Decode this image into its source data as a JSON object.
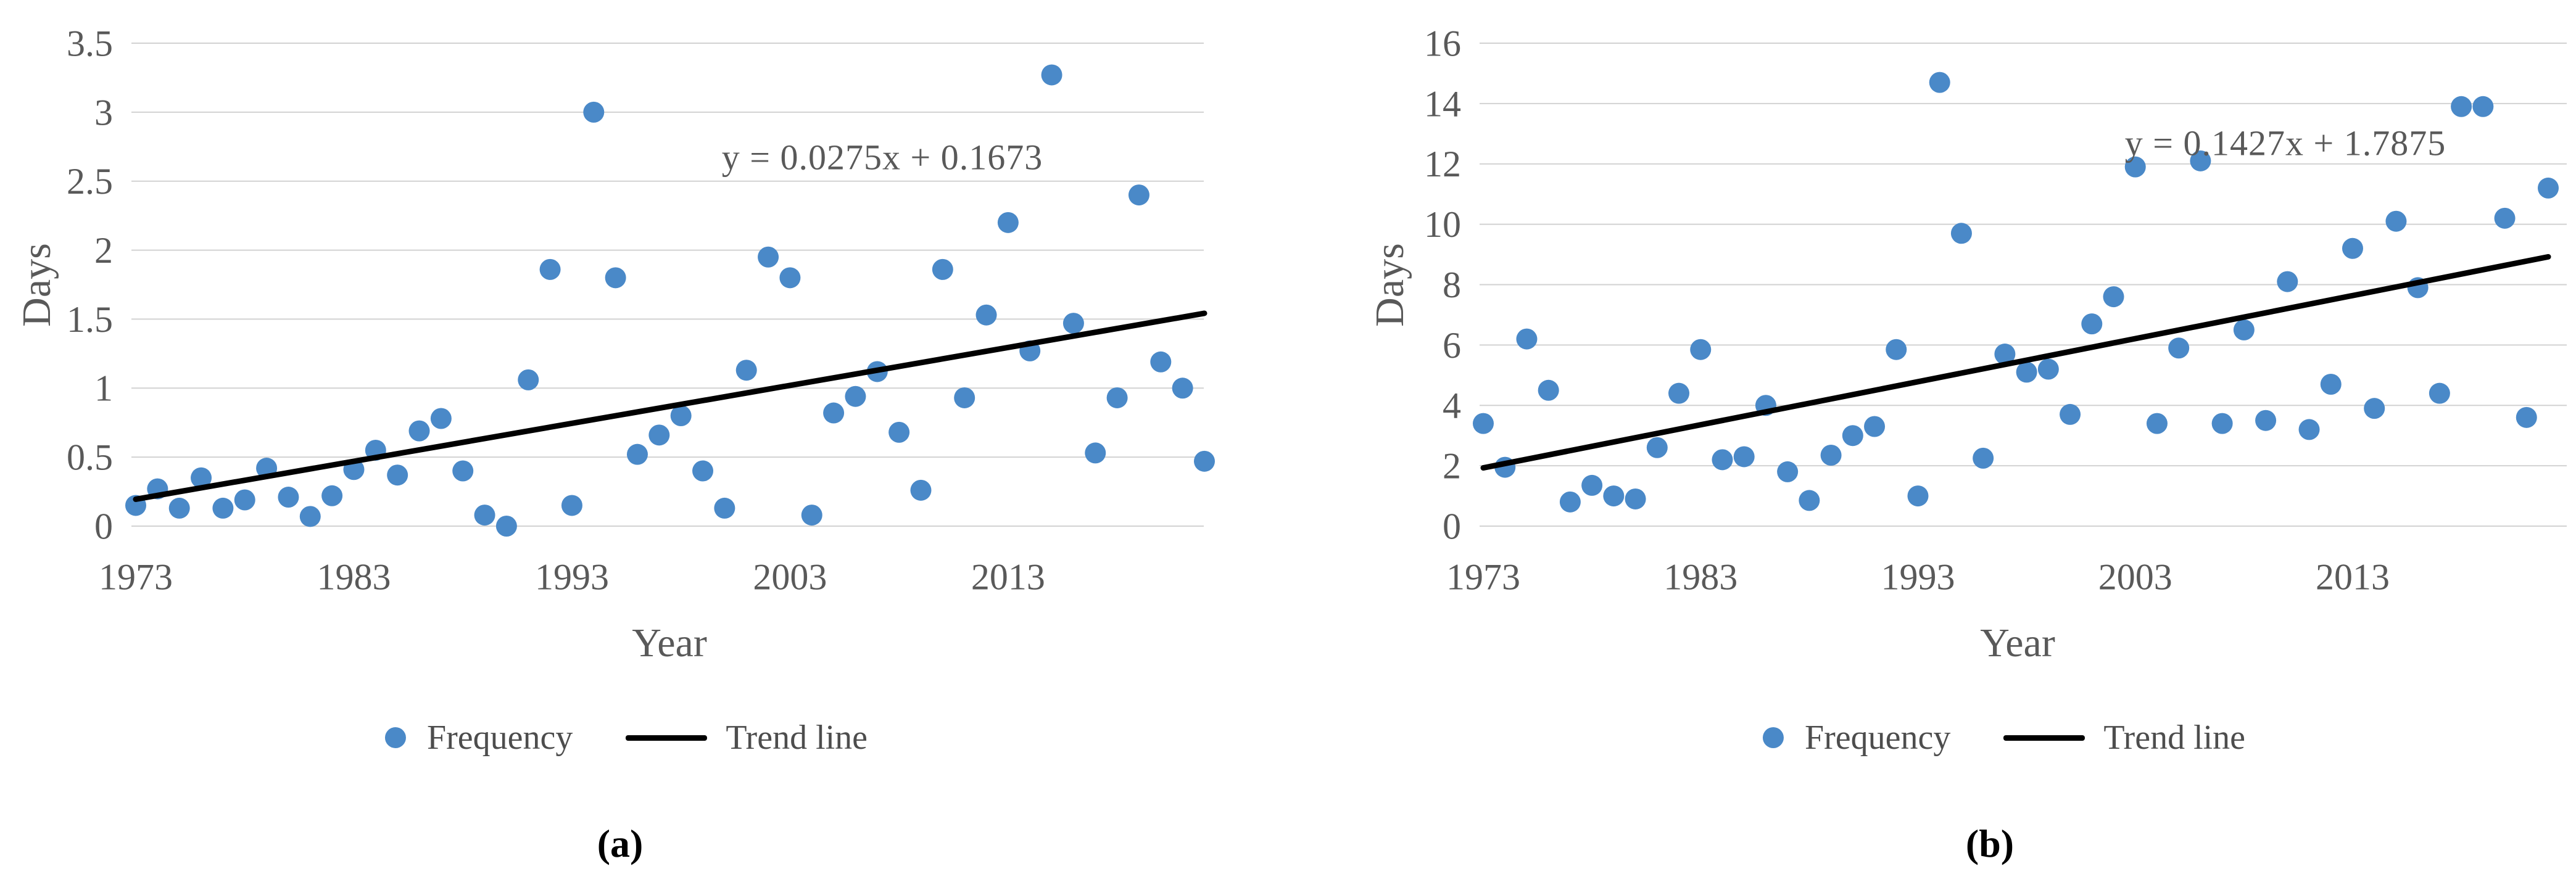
{
  "style": {
    "marker_color": "#4A89C8",
    "trend_color": "#000000",
    "gridline_color": "#D2D2D2",
    "tick_text_color": "#595959",
    "background": "#FFFFFF"
  },
  "chart_data": [
    {
      "type": "scatter",
      "title": "",
      "caption": "(a)",
      "xlabel": "Year",
      "ylabel": "Days",
      "annotation": "y = 0.0275x + 0.1673",
      "legend_position": "bottom",
      "grid": true,
      "xlim": [
        1973,
        2022
      ],
      "ylim": [
        0,
        3.5
      ],
      "x_ticks": [
        1973,
        1983,
        1993,
        2003,
        2013
      ],
      "y_ticks": [
        0,
        0.5,
        1,
        1.5,
        2,
        2.5,
        3,
        3.5
      ],
      "legend": [
        {
          "label": "Frequency",
          "marker": "circle"
        },
        {
          "label": "Trend line",
          "marker": "line"
        }
      ],
      "series_name": "Frequency",
      "x": [
        1973,
        1974,
        1975,
        1976,
        1977,
        1978,
        1979,
        1980,
        1981,
        1982,
        1983,
        1984,
        1985,
        1986,
        1987,
        1988,
        1989,
        1990,
        1991,
        1992,
        1993,
        1994,
        1995,
        1996,
        1997,
        1998,
        1999,
        2000,
        2001,
        2002,
        2003,
        2004,
        2005,
        2006,
        2007,
        2008,
        2009,
        2010,
        2011,
        2012,
        2013,
        2014,
        2015,
        2016,
        2017,
        2018,
        2019,
        2020,
        2021,
        2022
      ],
      "values": [
        0.15,
        0.27,
        0.13,
        0.35,
        0.13,
        0.19,
        0.42,
        0.21,
        0.07,
        0.22,
        0.41,
        0.55,
        0.37,
        0.69,
        0.78,
        0.4,
        0.08,
        0.0,
        1.06,
        1.86,
        0.15,
        3.0,
        1.8,
        0.52,
        0.66,
        0.8,
        0.4,
        0.13,
        1.13,
        1.95,
        1.8,
        0.08,
        0.82,
        0.94,
        1.12,
        0.68,
        0.26,
        1.86,
        0.93,
        1.53,
        2.2,
        1.27,
        3.27,
        1.47,
        0.53,
        0.93,
        2.4,
        1.19,
        1.0,
        0.47
      ],
      "trend_line": {
        "equation": "y = 0.0275x + 0.1673",
        "slope": 0.0275,
        "intercept": 0.1673,
        "start_value": 0.1948,
        "end_value": 1.5423
      }
    },
    {
      "type": "scatter",
      "title": "",
      "caption": "(b)",
      "xlabel": "Year",
      "ylabel": "Days",
      "annotation": "y = 0.1427x + 1.7875",
      "legend_position": "bottom",
      "grid": true,
      "xlim": [
        1973,
        2022
      ],
      "ylim": [
        0,
        16
      ],
      "x_ticks": [
        1973,
        1983,
        1993,
        2003,
        2013
      ],
      "y_ticks": [
        0,
        2,
        4,
        6,
        8,
        10,
        12,
        14,
        16
      ],
      "legend": [
        {
          "label": "Frequency",
          "marker": "circle"
        },
        {
          "label": "Trend line",
          "marker": "line"
        }
      ],
      "series_name": "Frequency",
      "x": [
        1973,
        1974,
        1975,
        1976,
        1977,
        1978,
        1979,
        1980,
        1981,
        1982,
        1983,
        1984,
        1985,
        1986,
        1987,
        1988,
        1989,
        1990,
        1991,
        1992,
        1993,
        1994,
        1995,
        1996,
        1997,
        1998,
        1999,
        2000,
        2001,
        2002,
        2003,
        2004,
        2005,
        2006,
        2007,
        2008,
        2009,
        2010,
        2011,
        2012,
        2013,
        2014,
        2015,
        2016,
        2017,
        2018,
        2019,
        2020,
        2021,
        2022
      ],
      "values": [
        3.4,
        1.95,
        6.2,
        4.5,
        0.8,
        1.35,
        1.0,
        0.9,
        2.6,
        4.4,
        5.85,
        2.2,
        2.3,
        4.0,
        1.8,
        0.85,
        2.35,
        3.0,
        3.3,
        5.85,
        1.0,
        14.7,
        9.7,
        2.25,
        5.7,
        5.1,
        5.2,
        3.7,
        6.7,
        7.6,
        11.9,
        3.4,
        5.9,
        12.1,
        3.4,
        6.5,
        3.5,
        8.1,
        3.2,
        4.7,
        9.2,
        3.9,
        10.1,
        7.9,
        4.4,
        13.9,
        13.9,
        10.2,
        3.6,
        11.2
      ],
      "trend_line": {
        "equation": "y = 0.1427x + 1.7875",
        "slope": 0.1427,
        "intercept": 1.7875,
        "start_value": 1.9302,
        "end_value": 8.9225
      }
    }
  ]
}
